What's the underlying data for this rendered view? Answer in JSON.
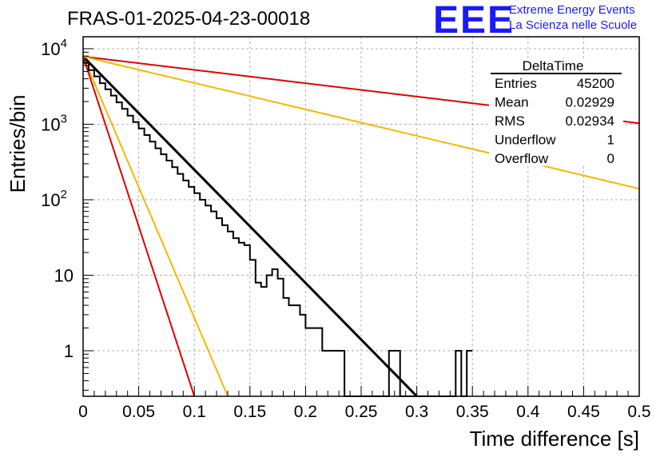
{
  "chart_title": "FRAS-01-2025-04-23-00018",
  "logo": {
    "mark": "EEE",
    "line1": "Extreme Energy Events",
    "line2": "La Scienza nelle Scuole"
  },
  "stats": {
    "name": "DeltaTime",
    "rows": [
      {
        "label": "Entries",
        "value": "45200"
      },
      {
        "label": "Mean",
        "value": "0.02929"
      },
      {
        "label": "RMS",
        "value": "0.02934"
      },
      {
        "label": "Underflow",
        "value": "1"
      },
      {
        "label": "Overflow",
        "value": "0"
      }
    ]
  },
  "colors": {
    "histogram": "#000000",
    "fit": "#000000",
    "red": "#e00000",
    "yellow": "#f5b800"
  },
  "chart_data": {
    "type": "line",
    "title": "FRAS-01-2025-04-23-00018",
    "xlabel": "Time difference [s]",
    "ylabel": "Entries/bin",
    "xlim": [
      0,
      0.5
    ],
    "ylim": [
      0.25,
      13000
    ],
    "yscale": "log",
    "grid": true,
    "legend": "top-right",
    "x_ticks": [
      "0",
      "0.05",
      "0.1",
      "0.15",
      "0.2",
      "0.25",
      "0.3",
      "0.35",
      "0.4",
      "0.45",
      "0.5"
    ],
    "y_ticks": [
      {
        "value": 1,
        "base": "1",
        "exp": ""
      },
      {
        "value": 10,
        "base": "10",
        "exp": ""
      },
      {
        "value": 100,
        "base": "10",
        "exp": "2"
      },
      {
        "value": 1000,
        "base": "10",
        "exp": "3"
      },
      {
        "value": 10000,
        "base": "10",
        "exp": "4"
      }
    ],
    "histogram": {
      "bin_width": 0.005,
      "x_start": 0,
      "counts": [
        6500,
        5200,
        4300,
        3500,
        2900,
        2400,
        1950,
        1600,
        1300,
        1070,
        880,
        720,
        590,
        480,
        400,
        330,
        270,
        220,
        180,
        148,
        122,
        100,
        84,
        70,
        57,
        46,
        38,
        31,
        27,
        25,
        16,
        8,
        7,
        10,
        12,
        9,
        5,
        4,
        4,
        3,
        2,
        2,
        2,
        1,
        1,
        1,
        1,
        0,
        0,
        0,
        0,
        0,
        0,
        0,
        0,
        1,
        1,
        0,
        0,
        0,
        0,
        0,
        0,
        0,
        0,
        0,
        0,
        1,
        0,
        1
      ]
    },
    "series": [
      {
        "color": "black",
        "x": [
          0,
          0.3
        ],
        "y": [
          7900,
          0.25
        ]
      },
      {
        "color": "red",
        "x": [
          0,
          0.5
        ],
        "y": [
          7900,
          1030
        ]
      },
      {
        "color": "yellow",
        "x": [
          0,
          0.5
        ],
        "y": [
          7900,
          140
        ]
      },
      {
        "color": "yellow",
        "x": [
          0,
          0.13
        ],
        "y": [
          7900,
          0.25
        ]
      },
      {
        "color": "red",
        "x": [
          0,
          0.1
        ],
        "y": [
          7900,
          0.25
        ]
      }
    ]
  }
}
